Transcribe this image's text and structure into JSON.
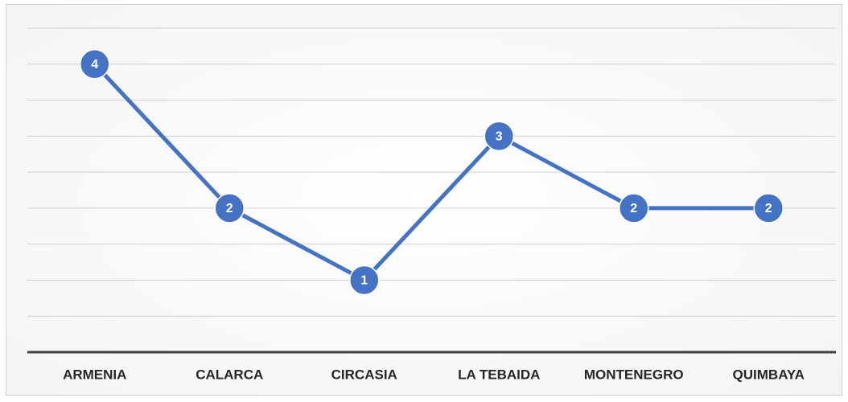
{
  "chart_data": {
    "type": "line",
    "categories": [
      "ARMENIA",
      "CALARCA",
      "CIRCASIA",
      "LA TEBAIDA",
      "MONTENEGRO",
      "QUIMBAYA"
    ],
    "values": [
      4,
      2,
      1,
      3,
      2,
      2
    ],
    "color": "#4472c4",
    "ylim": [
      0,
      4.5
    ],
    "yticks": [
      0,
      0.5,
      1,
      1.5,
      2,
      2.5,
      3,
      3.5,
      4,
      4.5
    ],
    "grid": true
  }
}
